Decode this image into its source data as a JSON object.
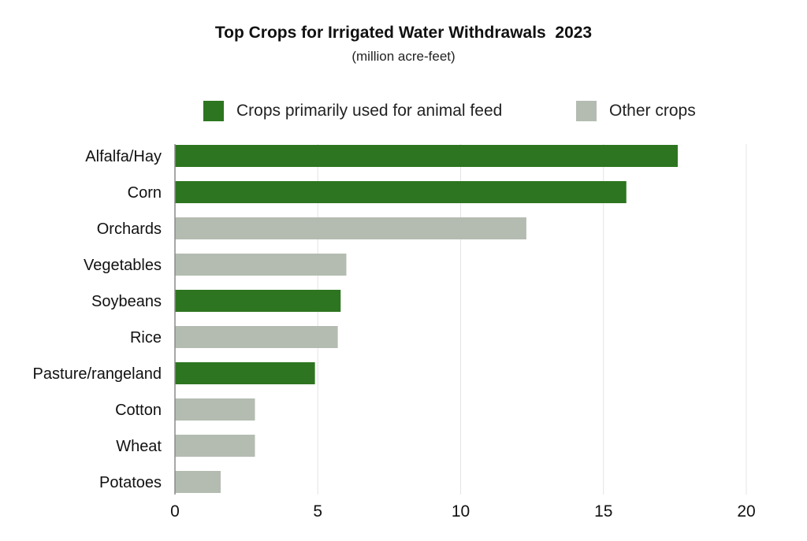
{
  "chart_data": {
    "type": "bar",
    "orientation": "horizontal",
    "title": "Top Crops for Irrigated Water Withdrawals  2023",
    "subtitle": "(million acre-feet)",
    "categories": [
      "Alfalfa/Hay",
      "Corn",
      "Orchards",
      "Vegetables",
      "Soybeans",
      "Rice",
      "Pasture/rangeland",
      "Cotton",
      "Wheat",
      "Potatoes"
    ],
    "values": [
      17.6,
      15.8,
      12.3,
      6.0,
      5.8,
      5.7,
      4.9,
      2.8,
      2.8,
      1.6
    ],
    "groups": [
      "feed",
      "feed",
      "other",
      "other",
      "feed",
      "other",
      "feed",
      "other",
      "other",
      "other"
    ],
    "legend": [
      {
        "key": "feed",
        "label": "Crops primarily used for animal feed",
        "color": "#2d7520"
      },
      {
        "key": "other",
        "label": "Other crops",
        "color": "#b4bcb2"
      }
    ],
    "legend_position": "top",
    "xlim": [
      0,
      20
    ],
    "xticks": [
      "0",
      "5",
      "10",
      "15",
      "20"
    ],
    "grid": "vertical",
    "xlabel": "",
    "ylabel": ""
  }
}
